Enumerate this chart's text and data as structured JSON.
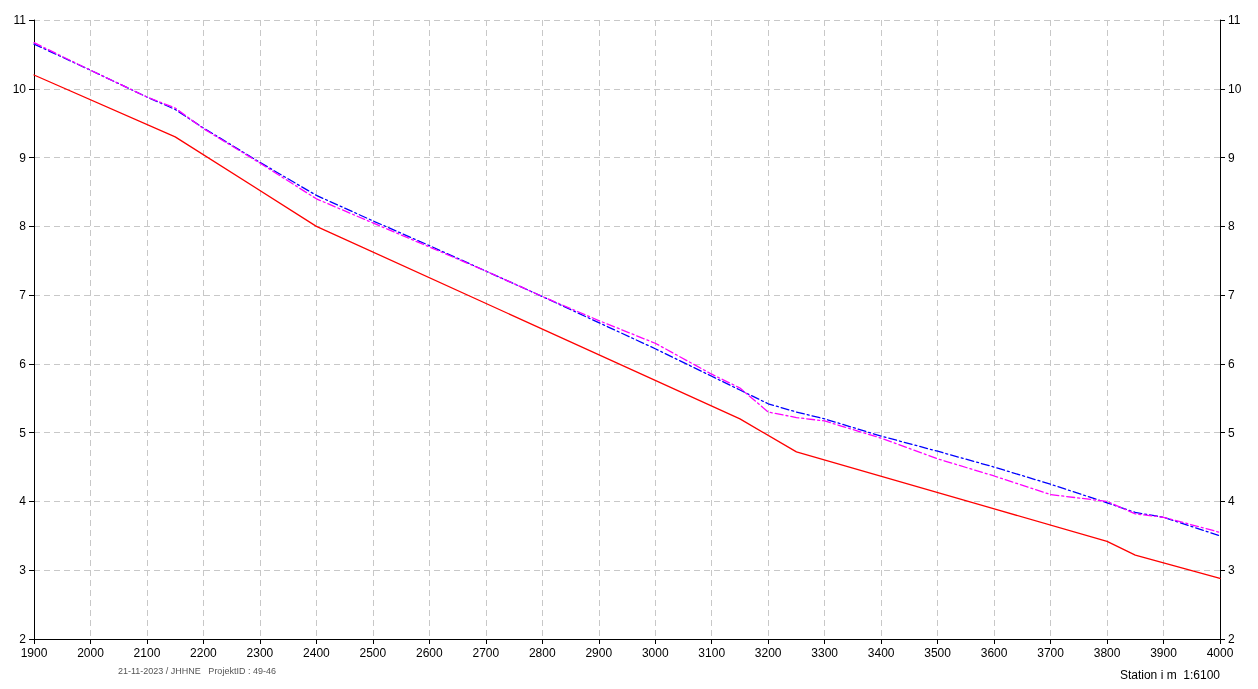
{
  "chart_data": {
    "type": "line",
    "xlabel": "Station i m  1:6100",
    "annotations": [
      "21-11-2023 / JHHNE   ProjektID : 49-46"
    ],
    "series": [
      {
        "color": "#ff0000",
        "line_style": "solid",
        "x": [
          1900,
          2150,
          2400,
          3150,
          3250,
          3800,
          3850,
          4000
        ],
        "values": [
          10.2,
          9.3,
          8.0,
          5.2,
          4.72,
          3.42,
          3.22,
          2.88
        ]
      },
      {
        "color": "#0000ff",
        "line_style": "dashed",
        "x": [
          1900,
          2000,
          2100,
          2150,
          2200,
          2300,
          2400,
          2500,
          2600,
          2700,
          2800,
          2900,
          3000,
          3100,
          3150,
          3200,
          3250,
          3300,
          3400,
          3500,
          3600,
          3700,
          3800,
          3850,
          3900,
          4000
        ],
        "values": [
          10.65,
          10.27,
          9.88,
          9.7,
          9.43,
          8.93,
          8.45,
          8.08,
          7.72,
          7.35,
          6.98,
          6.6,
          6.22,
          5.82,
          5.62,
          5.42,
          5.3,
          5.2,
          4.95,
          4.73,
          4.5,
          4.25,
          3.98,
          3.84,
          3.77,
          3.5
        ]
      },
      {
        "color": "#ff00ff",
        "line_style": "dashed",
        "x": [
          1900,
          2000,
          2100,
          2150,
          2200,
          2300,
          2400,
          2500,
          2600,
          2700,
          2800,
          2900,
          3000,
          3100,
          3150,
          3200,
          3250,
          3300,
          3400,
          3500,
          3600,
          3700,
          3800,
          3850,
          3900,
          4000
        ],
        "values": [
          10.67,
          10.27,
          9.88,
          9.72,
          9.42,
          8.92,
          8.4,
          8.05,
          7.7,
          7.35,
          6.98,
          6.63,
          6.3,
          5.85,
          5.65,
          5.3,
          5.22,
          5.17,
          4.92,
          4.62,
          4.37,
          4.1,
          4.0,
          3.82,
          3.77,
          3.55
        ]
      }
    ],
    "xlim": [
      1900,
      4000
    ],
    "xticks": [
      1900,
      2000,
      2100,
      2200,
      2300,
      2400,
      2500,
      2600,
      2700,
      2800,
      2900,
      3000,
      3100,
      3200,
      3300,
      3400,
      3500,
      3600,
      3700,
      3800,
      3900,
      4000
    ],
    "ylim": [
      2,
      11
    ],
    "yticks": [
      2,
      3,
      4,
      5,
      6,
      7,
      8,
      9,
      10,
      11
    ],
    "y2lim": [
      2,
      11
    ],
    "y2ticks": [
      2,
      3,
      4,
      5,
      6,
      7,
      8,
      9,
      10,
      11
    ],
    "grid": true,
    "marker": "none"
  }
}
